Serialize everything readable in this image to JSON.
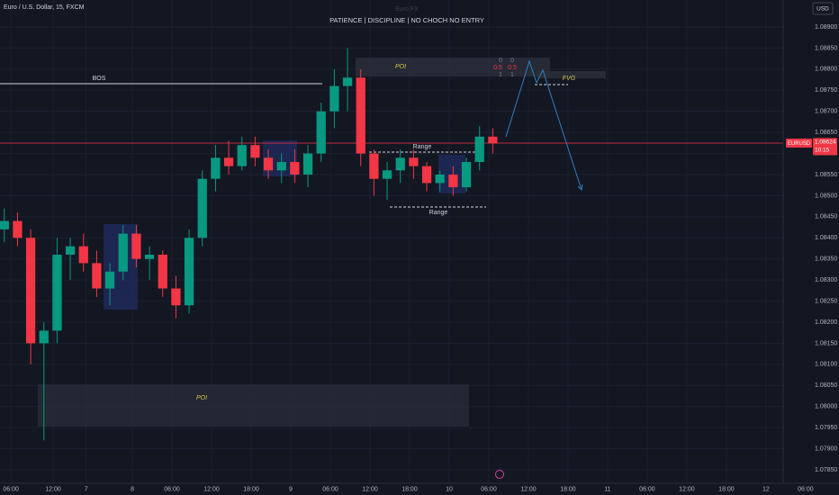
{
  "chart_data": {
    "type": "candlestick",
    "symbol_header": "Euro / U.S. Dollar, 15, FXCM",
    "watermark": "Euro FX",
    "title": "PATIENCE  |  DISCIPLINE  |  NO CHOCH NO ENTRY",
    "currency": "USD",
    "symbol": "EURUSD",
    "last_price": 1.08624,
    "countdown": "10:15",
    "up_color": "#089981",
    "down_color": "#f23645",
    "grid": true,
    "xlim": [
      21.95,
      140.6
    ],
    "ylim": [
      1.07818,
      1.08964
    ],
    "xticks": [
      {
        "value": 23.6,
        "label": "06:00"
      },
      {
        "value": 30,
        "label": "12:00"
      },
      {
        "value": 35,
        "label": "7"
      },
      {
        "value": 42,
        "label": "8"
      },
      {
        "value": 48,
        "label": "06:00"
      },
      {
        "value": 54,
        "label": "12:00"
      },
      {
        "value": 60,
        "label": "18:00"
      },
      {
        "value": 66,
        "label": "9"
      },
      {
        "value": 72,
        "label": "06:00"
      },
      {
        "value": 78,
        "label": "12:00"
      },
      {
        "value": 84,
        "label": "18:00"
      },
      {
        "value": 90,
        "label": "10"
      },
      {
        "value": 96,
        "label": "06:00"
      },
      {
        "value": 102,
        "label": "12:00"
      },
      {
        "value": 108,
        "label": "18:00"
      },
      {
        "value": 114,
        "label": "11"
      },
      {
        "value": 120,
        "label": "06:00"
      },
      {
        "value": 126,
        "label": "12:00"
      },
      {
        "value": 132,
        "label": "18:00"
      },
      {
        "value": 138,
        "label": "12"
      },
      {
        "value": 144,
        "label": "06:00"
      }
    ],
    "yticks": [
      {
        "value": 1.089,
        "label": "1.08900"
      },
      {
        "value": 1.0885,
        "label": "1.08850"
      },
      {
        "value": 1.088,
        "label": "1.08800"
      },
      {
        "value": 1.0875,
        "label": "1.08750"
      },
      {
        "value": 1.087,
        "label": "1.08700"
      },
      {
        "value": 1.0865,
        "label": "1.08650"
      },
      {
        "value": 1.086,
        "label": "1.08600"
      },
      {
        "value": 1.0855,
        "label": "1.08550"
      },
      {
        "value": 1.085,
        "label": "1.08500"
      },
      {
        "value": 1.0845,
        "label": "1.08450"
      },
      {
        "value": 1.084,
        "label": "1.08400"
      },
      {
        "value": 1.0835,
        "label": "1.08350"
      },
      {
        "value": 1.083,
        "label": "1.08300"
      },
      {
        "value": 1.0825,
        "label": "1.08250"
      },
      {
        "value": 1.082,
        "label": "1.08200"
      },
      {
        "value": 1.0815,
        "label": "1.08150"
      },
      {
        "value": 1.081,
        "label": "1.08100"
      },
      {
        "value": 1.0805,
        "label": "1.08050"
      },
      {
        "value": 1.08,
        "label": "1.08000"
      },
      {
        "value": 1.0795,
        "label": "1.07950"
      },
      {
        "value": 1.079,
        "label": "1.07900"
      },
      {
        "value": 1.0785,
        "label": "1.07850"
      }
    ],
    "x": [
      22.6,
      24.6,
      26.6,
      28.6,
      30.6,
      32.6,
      34.6,
      36.6,
      38.6,
      40.6,
      42.6,
      44.6,
      46.6,
      48.6,
      50.6,
      52.6,
      54.6,
      56.6,
      58.6,
      60.6,
      62.6,
      64.6,
      66.6,
      68.6,
      70.6,
      72.6,
      74.6,
      76.6,
      78.6,
      80.6,
      82.6,
      84.6,
      86.6,
      88.6,
      90.6,
      92.6,
      94.6,
      96.6
    ],
    "open": [
      1.0842,
      1.0844,
      1.084,
      1.0815,
      1.0818,
      1.0836,
      1.0838,
      1.0834,
      1.0828,
      1.0832,
      1.0841,
      1.0835,
      1.0836,
      1.0828,
      1.0824,
      1.084,
      1.0854,
      1.0859,
      1.0857,
      1.0862,
      1.0859,
      1.0856,
      1.0858,
      1.0855,
      1.086,
      1.087,
      1.0876,
      1.0878,
      1.086,
      1.0854,
      1.0856,
      1.0859,
      1.0857,
      1.0853,
      1.0855,
      1.0852,
      1.0858,
      1.0864
    ],
    "high": [
      1.0847,
      1.0846,
      1.0842,
      1.082,
      1.084,
      1.084,
      1.0841,
      1.0837,
      1.0834,
      1.0843,
      1.0843,
      1.0838,
      1.0837,
      1.0831,
      1.0842,
      1.0856,
      1.0862,
      1.0863,
      1.0864,
      1.0864,
      1.0861,
      1.086,
      1.0861,
      1.0862,
      1.0872,
      1.088,
      1.0885,
      1.088,
      1.0861,
      1.0858,
      1.0861,
      1.0861,
      1.0858,
      1.0856,
      1.0857,
      1.0859,
      1.08665,
      1.0866
    ],
    "low": [
      1.0839,
      1.0838,
      1.081,
      1.0792,
      1.0815,
      1.083,
      1.0832,
      1.0826,
      1.0824,
      1.083,
      1.0833,
      1.083,
      1.0826,
      1.0821,
      1.0822,
      1.0838,
      1.0851,
      1.0855,
      1.0856,
      1.0857,
      1.0854,
      1.0853,
      1.0853,
      1.0852,
      1.0858,
      1.0866,
      1.087,
      1.0857,
      1.085,
      1.0849,
      1.0853,
      1.0854,
      1.0851,
      1.0851,
      1.085,
      1.0851,
      1.0856,
      1.086
    ],
    "close": [
      1.0844,
      1.084,
      1.0815,
      1.0818,
      1.0836,
      1.0838,
      1.0834,
      1.0828,
      1.0832,
      1.0841,
      1.0835,
      1.0836,
      1.0828,
      1.0824,
      1.084,
      1.0854,
      1.0859,
      1.0857,
      1.0862,
      1.0859,
      1.0856,
      1.0858,
      1.0855,
      1.086,
      1.087,
      1.0876,
      1.0878,
      1.086,
      1.0854,
      1.0856,
      1.0859,
      1.0857,
      1.0853,
      1.0855,
      1.0852,
      1.0858,
      1.0864,
      1.08624
    ],
    "annotations": {
      "bos": "BOS",
      "poi_top": "POI",
      "poi_bottom": "POI",
      "fvg": "FVG",
      "range_top": "Range",
      "range_bottom": "Range",
      "fib_labels": [
        "0",
        "0",
        "0.5",
        "0.5",
        "1",
        "1"
      ]
    }
  }
}
